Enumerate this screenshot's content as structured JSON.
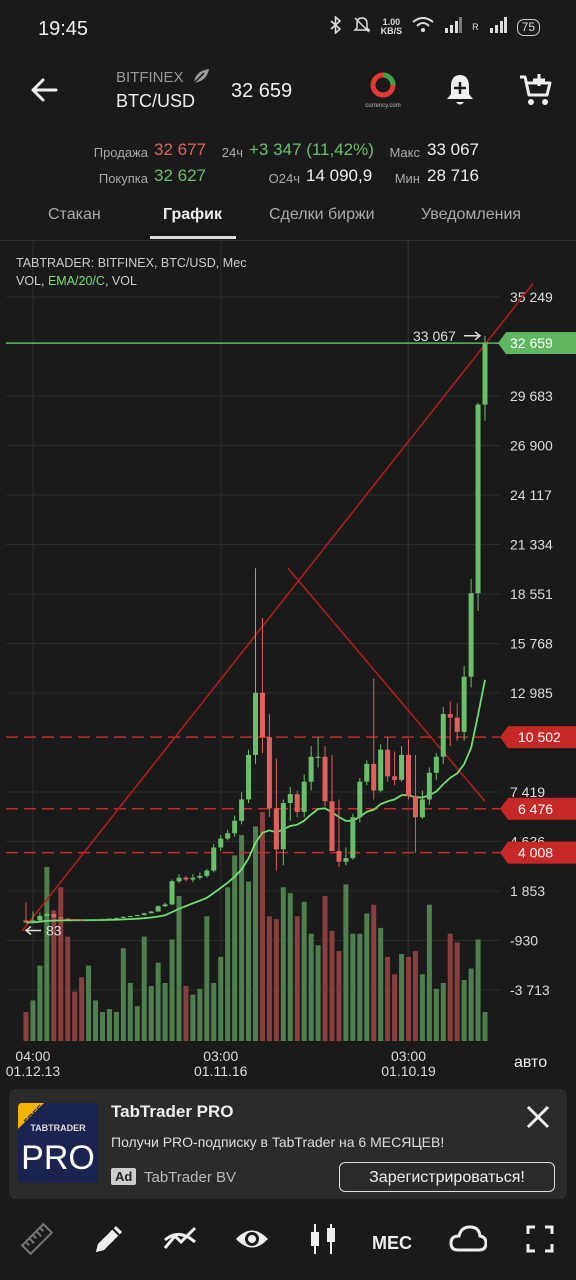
{
  "status_bar": {
    "time": "19:45",
    "net_speed": "1.00",
    "net_unit": "KB/S",
    "signal_label": "R",
    "battery": "75"
  },
  "header": {
    "exchange": "BITFINEX",
    "pair": "BTC/USD",
    "price": "32 659",
    "logo_caption": "currency.com"
  },
  "stats": {
    "sell_label": "Продажа",
    "sell_value": "32 677",
    "buy_label": "Покупка",
    "buy_value": "32 627",
    "change_label": "24ч",
    "change_value": "+3 347 (11,42%)",
    "volume_label": "О24ч",
    "volume_value": "14 090,9",
    "max_label": "Макс",
    "max_value": "33 067",
    "min_label": "Мин",
    "min_value": "28 716"
  },
  "tabs": [
    {
      "label": "Стакан",
      "active": false
    },
    {
      "label": "График",
      "active": true
    },
    {
      "label": "Сделки биржи",
      "active": false
    },
    {
      "label": "Уведомления",
      "active": false
    }
  ],
  "chart_data": {
    "type": "candlestick",
    "title": "TABTRADER: BITFINEX, BTC/USD, Мес",
    "indicators": [
      "VOL",
      "EMA/20/C",
      "VOL"
    ],
    "indicator_colors": {
      "ema": "#6ee06e",
      "vol_up": "#4f7f4f",
      "vol_down": "#8a3f3f"
    },
    "y_ticks": [
      "35 249",
      "29 683",
      "26 900",
      "24 117",
      "21 334",
      "18 551",
      "15 768",
      "12 985",
      "7 419",
      "4 636",
      "1 853",
      "-930",
      "-3 713"
    ],
    "x_ticks": [
      {
        "time": "04:00",
        "date": "01.12.13"
      },
      {
        "time": "03:00",
        "date": "01.11.16"
      },
      {
        "time": "03:00",
        "date": "01.10.19"
      }
    ],
    "current_price": "32 659",
    "current_price_color": "#5fb85f",
    "level_color": "#c62828",
    "levels": [
      "10 502",
      "6 476",
      "4 008"
    ],
    "max_annotation": "33 067",
    "min_annotation": "83",
    "auto_label": "авто",
    "closes": [
      83,
      200,
      450,
      560,
      380,
      300,
      260,
      240,
      230,
      240,
      260,
      280,
      300,
      340,
      400,
      440,
      500,
      600,
      700,
      1000,
      1100,
      2400,
      2600,
      2500,
      2600,
      2700,
      3000,
      4300,
      4800,
      5100,
      5800,
      7000,
      9500,
      13000,
      10500,
      6500,
      4200,
      6800,
      7300,
      6300,
      8000,
      9400,
      9400,
      6900,
      4100,
      3500,
      3700,
      6000,
      8000,
      9000,
      7500,
      9800,
      8300,
      8100,
      9500,
      7200,
      6000,
      7000,
      8500,
      9400,
      11800,
      11600,
      10800,
      13900,
      18600,
      29200,
      32659
    ],
    "opens": [
      200,
      83,
      200,
      450,
      560,
      380,
      300,
      260,
      240,
      230,
      240,
      260,
      280,
      300,
      340,
      400,
      440,
      500,
      600,
      700,
      1000,
      1100,
      2400,
      2600,
      2500,
      2600,
      2700,
      3000,
      4300,
      4800,
      5100,
      5800,
      7000,
      9500,
      13000,
      10500,
      6500,
      4200,
      6800,
      7300,
      6300,
      8000,
      9400,
      9400,
      6900,
      4100,
      3500,
      3700,
      6000,
      8000,
      9000,
      7500,
      9800,
      8300,
      8100,
      9500,
      7200,
      6000,
      7000,
      8500,
      9400,
      11800,
      11600,
      10800,
      13900,
      18600,
      29200
    ],
    "highs": [
      1200,
      700,
      650,
      620,
      600,
      400,
      330,
      280,
      260,
      260,
      280,
      300,
      320,
      360,
      420,
      460,
      520,
      620,
      720,
      1050,
      1200,
      2500,
      2800,
      2700,
      2800,
      2900,
      3100,
      4500,
      5000,
      5300,
      6100,
      7400,
      9800,
      20000,
      17200,
      11800,
      9300,
      7000,
      7700,
      7500,
      8400,
      10000,
      10500,
      10000,
      9500,
      7000,
      4300,
      6200,
      8200,
      9200,
      13800,
      10100,
      10500,
      9700,
      10000,
      10400,
      9500,
      7500,
      8800,
      9600,
      12200,
      12500,
      12400,
      14500,
      19400,
      29300,
      33067
    ],
    "lows": [
      83,
      83,
      180,
      420,
      340,
      280,
      250,
      230,
      220,
      220,
      230,
      250,
      270,
      290,
      330,
      390,
      430,
      490,
      590,
      690,
      950,
      1050,
      2300,
      2400,
      2350,
      2500,
      2600,
      2900,
      4100,
      4700,
      4900,
      5600,
      6800,
      9000,
      9600,
      6000,
      3000,
      3300,
      5800,
      6000,
      6000,
      7500,
      8800,
      6600,
      6500,
      3200,
      3300,
      3600,
      5700,
      7800,
      7000,
      7400,
      8000,
      7800,
      8000,
      7000,
      4000,
      5900,
      6700,
      8100,
      9000,
      10000,
      10300,
      10300,
      13300,
      17600,
      28300
    ],
    "volumes": [
      10,
      14,
      26,
      60,
      45,
      53,
      36,
      17,
      22,
      26,
      14,
      10,
      11,
      10,
      32,
      20,
      12,
      36,
      19,
      27,
      20,
      35,
      50,
      19,
      16,
      18,
      43,
      20,
      29,
      53,
      64,
      71,
      55,
      74,
      79,
      43,
      42,
      53,
      51,
      43,
      48,
      37,
      33,
      50,
      38,
      31,
      54,
      37,
      37,
      44,
      47,
      39,
      29,
      23,
      30,
      29,
      31,
      23,
      47,
      18,
      20,
      37,
      34,
      21,
      25,
      35,
      10
    ]
  },
  "ad": {
    "logo_free": "FREE",
    "logo_brand": "TABTRADER",
    "logo_pro": "PRO",
    "title": "TabTrader PRO",
    "text": "Получи PRO-подписку в TabTrader на 6 МЕСЯЦЕВ!",
    "badge": "Ad",
    "advertiser": "TabTrader BV",
    "cta": "Зарегистрироваться!"
  },
  "toolbar": {
    "timeframe_label": "МЕС"
  }
}
